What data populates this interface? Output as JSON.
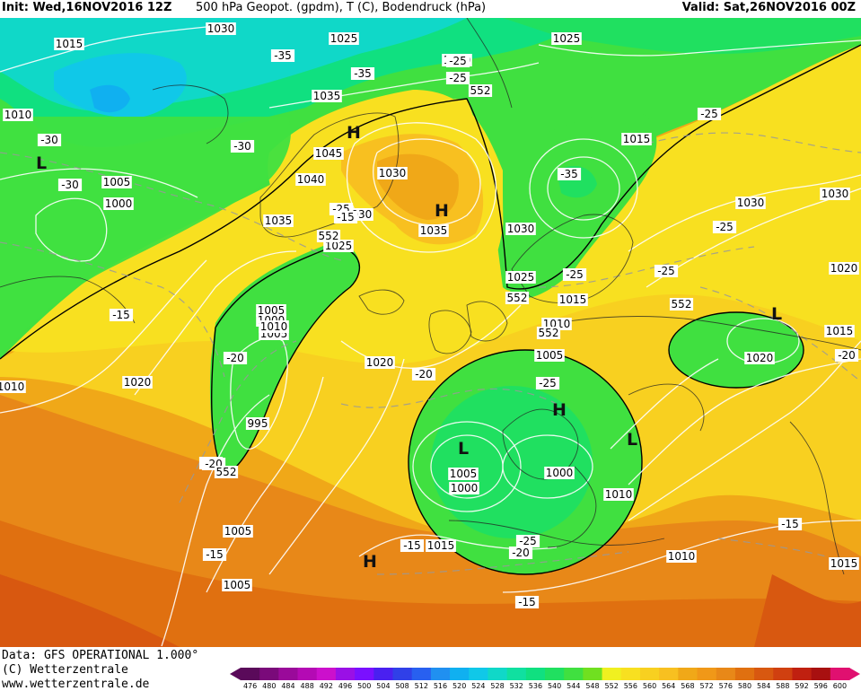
{
  "header": {
    "init": "Init: Wed,16NOV2016 12Z",
    "main": "500 hPa Geopot. (gpdm), T (C), Bodendruck (hPa)",
    "valid": "Valid: Sat,26NOV2016 00Z"
  },
  "footer": {
    "data_line": "Data: GFS OPERATIONAL 1.000°",
    "copyright": "(C) Wetterzentrale",
    "url": "www.wetterzentrale.de"
  },
  "legend": {
    "ticks": [
      "476",
      "480",
      "484",
      "488",
      "492",
      "496",
      "500",
      "504",
      "508",
      "512",
      "516",
      "520",
      "524",
      "528",
      "532",
      "536",
      "540",
      "544",
      "548",
      "552",
      "556",
      "560",
      "564",
      "568",
      "572",
      "576",
      "580",
      "584",
      "588",
      "592",
      "596",
      "600"
    ],
    "colors": [
      "#5a0a5a",
      "#7a0a7a",
      "#9a0a9a",
      "#b40ab4",
      "#cc10cc",
      "#9a10e6",
      "#7a10ff",
      "#4a20f0",
      "#3040e8",
      "#2860f0",
      "#2090f0",
      "#10b0f0",
      "#10c8e8",
      "#10d8c8",
      "#10e0a0",
      "#10e080",
      "#20e060",
      "#40e040",
      "#70e020",
      "#f0f020",
      "#f8e020",
      "#f8d020",
      "#f8c020",
      "#f0a818",
      "#f09818",
      "#e88818",
      "#e07010",
      "#d85810",
      "#d04010",
      "#c02010",
      "#a81010",
      "#e01070"
    ]
  },
  "map_labels": {
    "H": "H",
    "L": "L",
    "isobars": [
      "1015",
      "1030",
      "1025",
      "1020",
      "1025",
      "1010",
      "1035",
      "1045",
      "1040",
      "1030",
      "1035",
      "1030",
      "1025",
      "1030",
      "1015",
      "1030",
      "1030",
      "1020",
      "1005",
      "1000",
      "1035",
      "1025",
      "1015",
      "1010",
      "1005",
      "1000",
      "995",
      "1020",
      "1020",
      "1005",
      "1015",
      "1005",
      "1010",
      "1000",
      "1005",
      "1000",
      "1005",
      "1005",
      "1015",
      "1010",
      "1020",
      "1015",
      "1010",
      "1010",
      "1015"
    ],
    "temps": [
      "-30",
      "-35",
      "-35",
      "-30",
      "-25",
      "-30",
      "-25",
      "-25",
      "-25",
      "-25",
      "-35",
      "-25",
      "-15",
      "-20",
      "-20",
      "-25",
      "-20",
      "-20",
      "-25",
      "-15",
      "-15",
      "-20",
      "-15",
      "-20",
      "-15",
      "-15",
      "-25"
    ],
    "geop": [
      "552",
      "552",
      "552",
      "552",
      "552",
      "552"
    ]
  }
}
